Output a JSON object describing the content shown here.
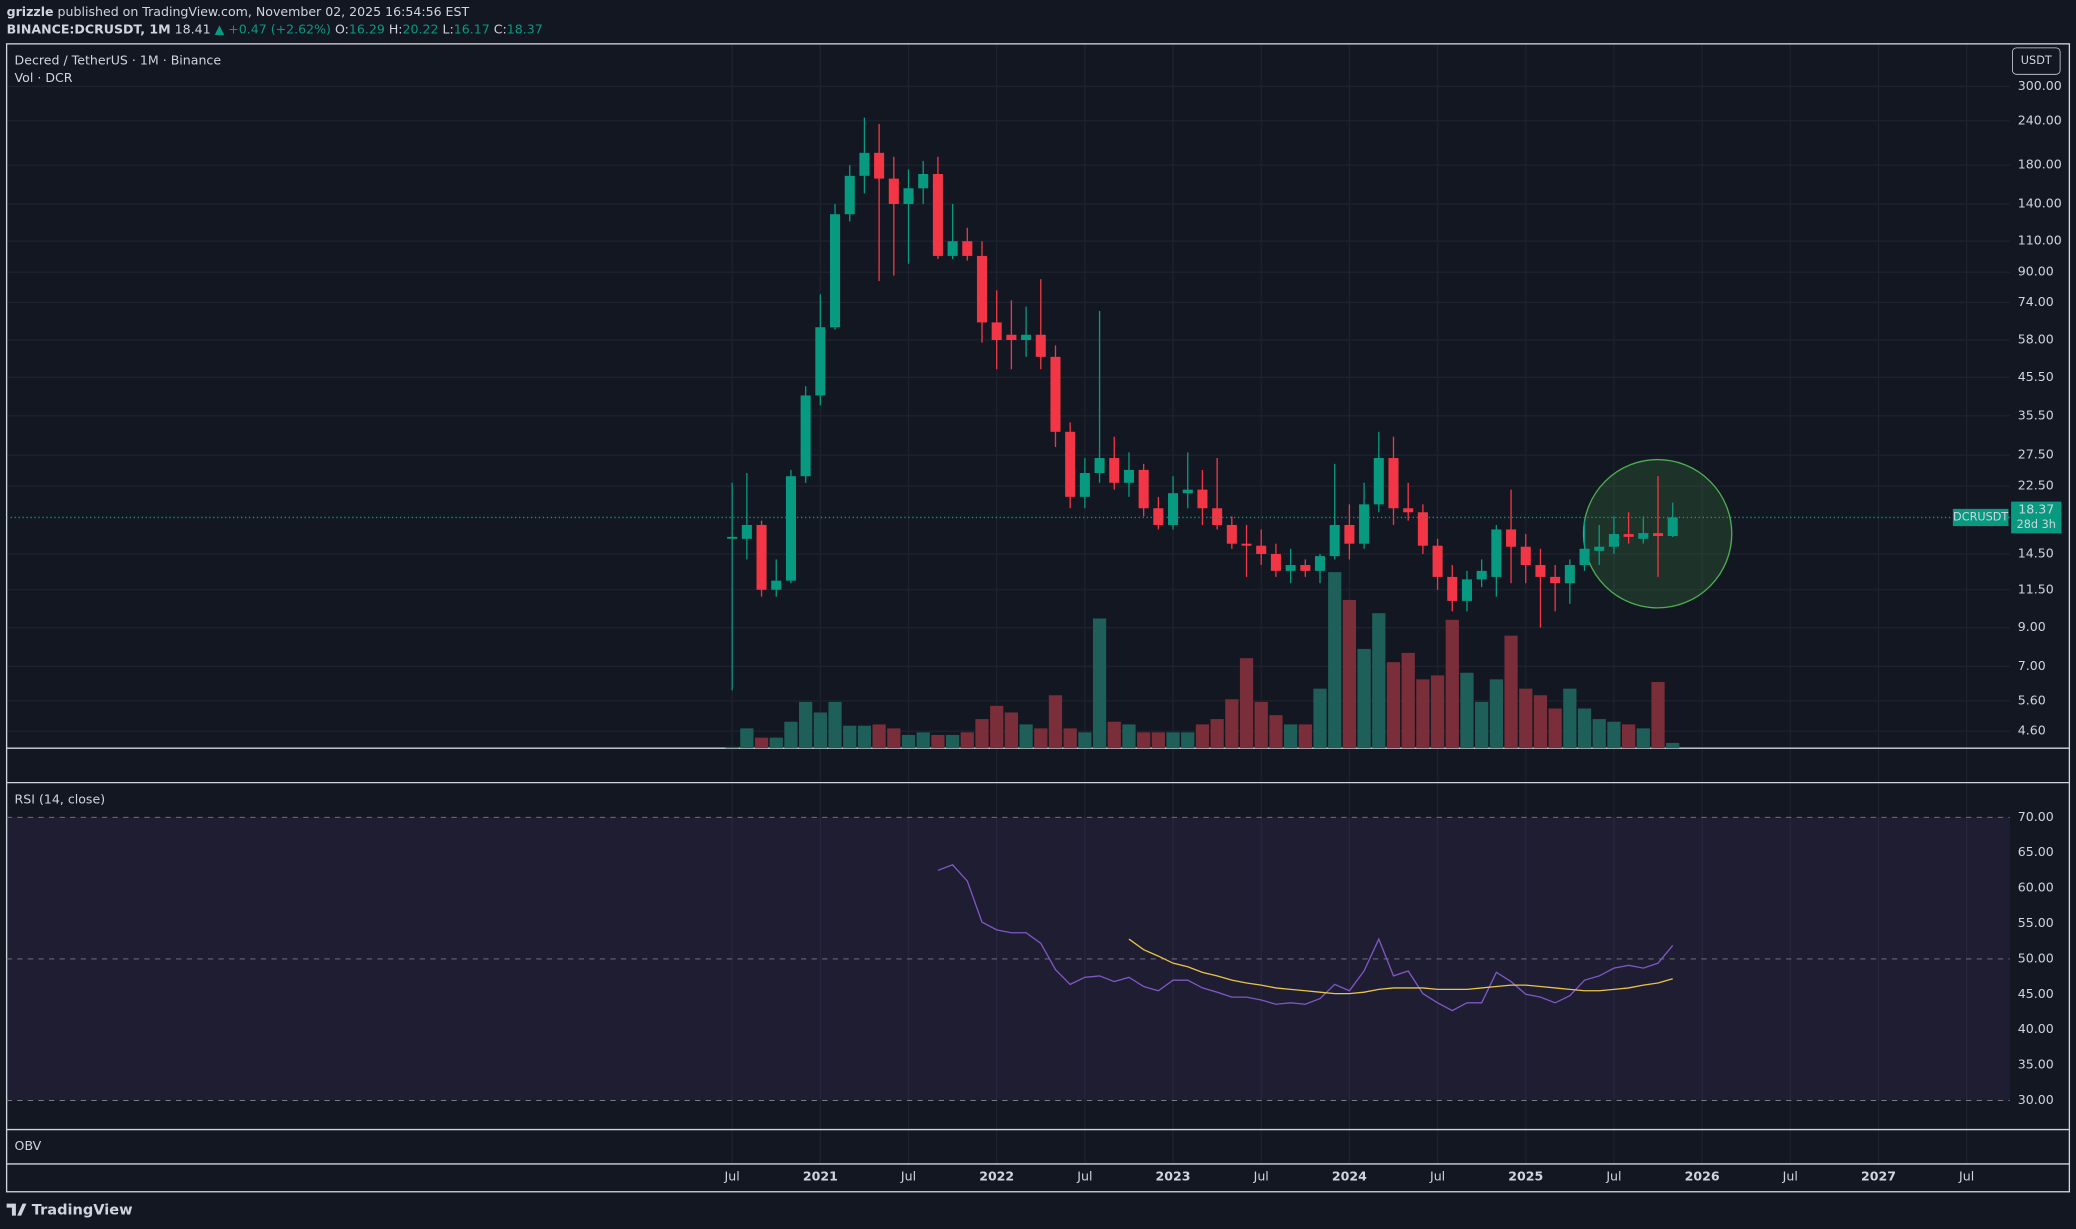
{
  "header": {
    "author": "grizzle",
    "published": "published on TradingView.com, November 02, 2025 16:54:56 EST",
    "symbol": "BINANCE:DCRUSDT, 1M",
    "last": "18.41",
    "change": "▲ +0.47 (+2.62%)",
    "ohlc": [
      {
        "key": "O:",
        "value": "16.29"
      },
      {
        "key": "H:",
        "value": "20.22"
      },
      {
        "key": "L:",
        "value": "16.17"
      },
      {
        "key": "C:",
        "value": "18.37"
      }
    ]
  },
  "footer": {
    "brand": "TradingView"
  },
  "chart_data": [
    {
      "type": "candlestick",
      "title": "Decred / TetherUS · 1M · Binance",
      "currency": "USDT",
      "symbol": "DCRUSDT",
      "countdown": "28d 3h",
      "log_scale": true,
      "grid": true,
      "up_color": "#089981",
      "down_color": "#f23645",
      "x": [
        "2020-07",
        "2020-08",
        "2020-09",
        "2020-10",
        "2020-11",
        "2020-12",
        "2021-01",
        "2021-02",
        "2021-03",
        "2021-04",
        "2021-05",
        "2021-06",
        "2021-07",
        "2021-08",
        "2021-09",
        "2021-10",
        "2021-11",
        "2021-12",
        "2022-01",
        "2022-02",
        "2022-03",
        "2022-04",
        "2022-05",
        "2022-06",
        "2022-07",
        "2022-08",
        "2022-09",
        "2022-10",
        "2022-11",
        "2022-12",
        "2023-01",
        "2023-02",
        "2023-03",
        "2023-04",
        "2023-05",
        "2023-06",
        "2023-07",
        "2023-08",
        "2023-09",
        "2023-10",
        "2023-11",
        "2023-12",
        "2024-01",
        "2024-02",
        "2024-03",
        "2024-04",
        "2024-05",
        "2024-06",
        "2024-07",
        "2024-08",
        "2024-09",
        "2024-10",
        "2024-11",
        "2024-12",
        "2025-01",
        "2025-02",
        "2025-03",
        "2025-04",
        "2025-05",
        "2025-06",
        "2025-07",
        "2025-08",
        "2025-09",
        "2025-10",
        "2025-11"
      ],
      "open": [
        16,
        16,
        17.5,
        11.5,
        12.2,
        24,
        40.5,
        63,
        131,
        168,
        195,
        165,
        140,
        155,
        170,
        100,
        110,
        100,
        65,
        60,
        58,
        60,
        52,
        32,
        21,
        24.5,
        27,
        23,
        25,
        19.5,
        17.5,
        21.5,
        22,
        19.5,
        17.5,
        15.5,
        15.3,
        14.5,
        13,
        13.5,
        13,
        14.3,
        17.5,
        15.5,
        20,
        27,
        19.5,
        19,
        15.3,
        12.5,
        10.7,
        12.3,
        12.5,
        17,
        15.2,
        13.5,
        12.5,
        12,
        13.5,
        14.8,
        15.2,
        16.5,
        16,
        16.6,
        16.29
      ],
      "high": [
        23,
        24.5,
        18,
        14,
        25,
        43,
        78,
        140,
        180,
        245,
        235,
        190,
        175,
        185,
        190,
        140,
        120,
        110,
        80,
        75,
        72,
        86,
        56,
        34,
        27,
        70,
        31,
        28,
        26,
        21,
        24,
        28,
        25,
        27,
        18.5,
        17.5,
        17,
        15.5,
        15,
        14,
        14.5,
        26,
        20,
        23,
        32,
        31,
        23,
        20,
        16,
        13.5,
        13,
        14,
        17.5,
        22,
        16.5,
        15,
        13.5,
        14,
        18,
        17.5,
        18.5,
        19,
        18.5,
        24,
        20.22
      ],
      "low": [
        6,
        14,
        11,
        11,
        12,
        23,
        38,
        62,
        125,
        150,
        85,
        88,
        95,
        140,
        98,
        98,
        97,
        57,
        48,
        48,
        52,
        48,
        29,
        19.5,
        19.5,
        23,
        22,
        21,
        18.5,
        17,
        17,
        19.5,
        17.5,
        17,
        15,
        12.5,
        13.5,
        12.5,
        12,
        12.5,
        12,
        14,
        14,
        15,
        19,
        17.5,
        18,
        14.5,
        11.5,
        10,
        10,
        11.7,
        11,
        12,
        12,
        9,
        10,
        10.5,
        13,
        13.5,
        14.5,
        15.5,
        15.5,
        12.5,
        16.17
      ],
      "close": [
        16.2,
        17.5,
        11.5,
        12.2,
        24,
        40.5,
        63,
        131,
        168,
        195,
        165,
        140,
        155,
        170,
        100,
        110,
        100,
        65,
        58,
        58,
        60,
        52,
        32,
        21,
        24.5,
        27,
        23,
        25,
        19.5,
        17.5,
        21.5,
        22,
        19.5,
        17.5,
        15.5,
        15.3,
        14.5,
        13,
        13.5,
        13,
        14.3,
        17.5,
        15.5,
        20,
        27,
        19.5,
        19,
        15.3,
        12.5,
        10.7,
        12.3,
        13,
        17,
        15.2,
        13.5,
        12.5,
        12,
        13.5,
        15,
        15.2,
        16.5,
        16.2,
        16.6,
        16.29,
        18.37
      ],
      "ylim": [
        4.12,
        395
      ],
      "yticks": [
        {
          "value": 300,
          "label": "300.00"
        },
        {
          "value": 240,
          "label": "240.00"
        },
        {
          "value": 180,
          "label": "180.00"
        },
        {
          "value": 140,
          "label": "140.00"
        },
        {
          "value": 110,
          "label": "110.00"
        },
        {
          "value": 90,
          "label": "90.00"
        },
        {
          "value": 74,
          "label": "74.00"
        },
        {
          "value": 58,
          "label": "58.00"
        },
        {
          "value": 45.5,
          "label": "45.50"
        },
        {
          "value": 35.5,
          "label": "35.50"
        },
        {
          "value": 27.5,
          "label": "27.50"
        },
        {
          "value": 22.5,
          "label": "22.50"
        },
        {
          "value": 14.5,
          "label": "14.50"
        },
        {
          "value": 11.5,
          "label": "11.50"
        },
        {
          "value": 9,
          "label": "9.00"
        },
        {
          "value": 7,
          "label": "7.00"
        },
        {
          "value": 5.6,
          "label": "5.60"
        },
        {
          "value": 4.6,
          "label": "4.60"
        }
      ],
      "xticks": [
        {
          "value": "2020-07",
          "label": "Jul"
        },
        {
          "value": "2021-01",
          "label": "2021"
        },
        {
          "value": "2021-07",
          "label": "Jul"
        },
        {
          "value": "2022-01",
          "label": "2022"
        },
        {
          "value": "2022-07",
          "label": "Jul"
        },
        {
          "value": "2023-01",
          "label": "2023"
        },
        {
          "value": "2023-07",
          "label": "Jul"
        },
        {
          "value": "2024-01",
          "label": "2024"
        },
        {
          "value": "2024-07",
          "label": "Jul"
        },
        {
          "value": "2025-01",
          "label": "2025"
        },
        {
          "value": "2025-07",
          "label": "Jul"
        },
        {
          "value": "2026-01",
          "label": "2026"
        },
        {
          "value": "2026-07",
          "label": "Jul"
        },
        {
          "value": "2027-01",
          "label": "2027"
        },
        {
          "value": "2027-07",
          "label": "Jul"
        }
      ]
    },
    {
      "type": "bar",
      "title": "Vol · DCR",
      "up_color": "#1f5f59",
      "down_color": "#7a2e3a",
      "ylim": [
        0,
        140
      ],
      "values": [
        1,
        15,
        8,
        8,
        20,
        35,
        27,
        35,
        17,
        17,
        18,
        15,
        10,
        12,
        10,
        10,
        12,
        22,
        32,
        27,
        18,
        15,
        40,
        15,
        12,
        98,
        20,
        18,
        12,
        12,
        12,
        12,
        18,
        22,
        37,
        68,
        35,
        25,
        18,
        18,
        45,
        133,
        112,
        75,
        102,
        65,
        72,
        52,
        55,
        97,
        57,
        35,
        52,
        85,
        45,
        40,
        30,
        45,
        30,
        22,
        20,
        18,
        15,
        50,
        4
      ]
    },
    {
      "type": "line",
      "title": "RSI (14, close)",
      "ylim": [
        25.9,
        74.9
      ],
      "levels": [
        70,
        50,
        30
      ],
      "yticks": [
        {
          "value": 70,
          "label": "70.00"
        },
        {
          "value": 65,
          "label": "65.00"
        },
        {
          "value": 60,
          "label": "60.00"
        },
        {
          "value": 55,
          "label": "55.00"
        },
        {
          "value": 50,
          "label": "50.00"
        },
        {
          "value": 45,
          "label": "45.00"
        },
        {
          "value": 40,
          "label": "40.00"
        },
        {
          "value": 35,
          "label": "35.00"
        },
        {
          "value": 30,
          "label": "30.00"
        }
      ],
      "series": [
        {
          "color": "#7e57c2",
          "values": [
            null,
            null,
            null,
            null,
            null,
            null,
            null,
            null,
            null,
            null,
            null,
            null,
            null,
            null,
            62.5,
            63.3,
            61,
            55.2,
            54.1,
            53.7,
            53.7,
            52.2,
            48.5,
            46.4,
            47.4,
            47.6,
            46.8,
            47.4,
            46.1,
            45.5,
            47,
            47,
            45.9,
            45.3,
            44.6,
            44.6,
            44.2,
            43.6,
            43.8,
            43.6,
            44.4,
            46.4,
            45.5,
            48.3,
            52.8,
            47.6,
            48.3,
            45.1,
            43.8,
            42.7,
            43.8,
            43.8,
            48.1,
            46.8,
            45,
            44.6,
            43.8,
            44.8,
            47,
            47.6,
            48.7,
            49.1,
            48.7,
            49.4,
            51.9
          ]
        },
        {
          "color": "#e8c547",
          "values": [
            null,
            null,
            null,
            null,
            null,
            null,
            null,
            null,
            null,
            null,
            null,
            null,
            null,
            null,
            null,
            null,
            null,
            null,
            null,
            null,
            null,
            null,
            null,
            null,
            null,
            null,
            null,
            52.8,
            51.3,
            50.4,
            49.4,
            48.9,
            48.1,
            47.6,
            47,
            46.6,
            46.3,
            45.9,
            45.7,
            45.5,
            45.3,
            45.1,
            45.1,
            45.3,
            45.7,
            45.9,
            45.9,
            45.9,
            45.7,
            45.7,
            45.7,
            45.9,
            46.1,
            46.3,
            46.3,
            46.1,
            45.9,
            45.7,
            45.5,
            45.5,
            45.7,
            45.9,
            46.3,
            46.6,
            47.2
          ]
        }
      ]
    },
    {
      "type": "line",
      "title": "OBV"
    }
  ]
}
